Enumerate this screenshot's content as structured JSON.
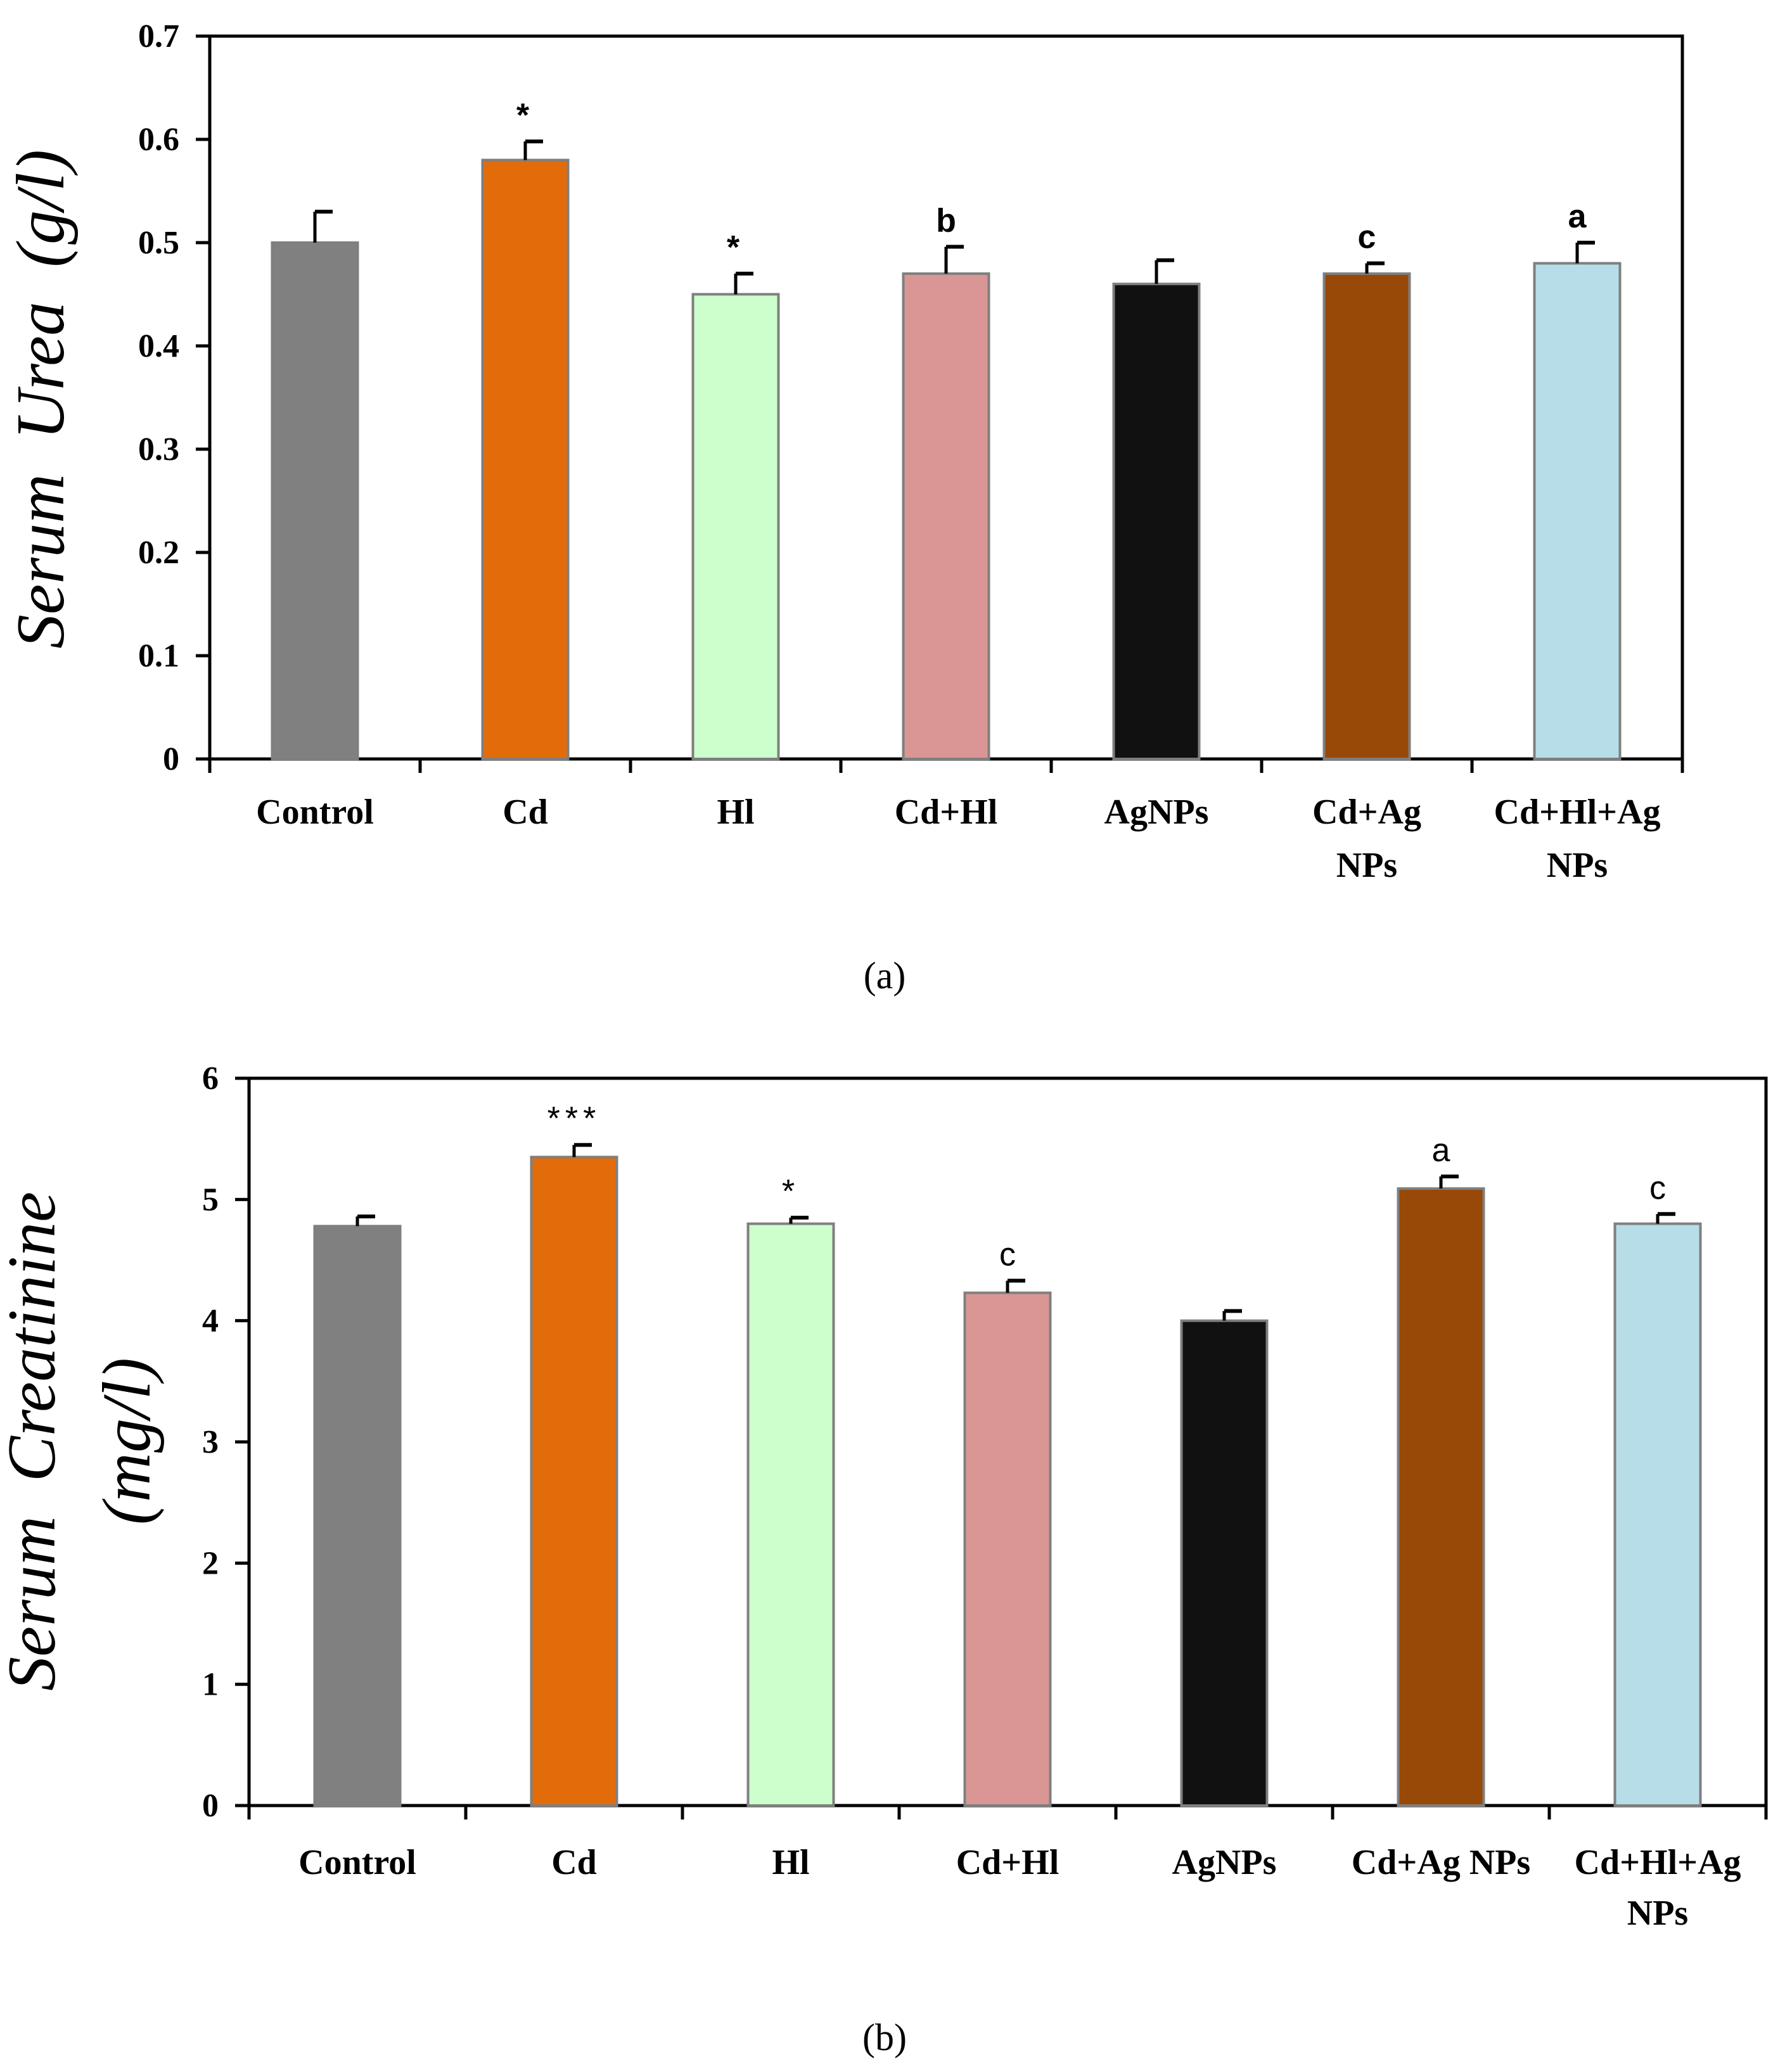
{
  "chart_data": [
    {
      "panel": "(a)",
      "type": "bar",
      "title": "",
      "xlabel": "",
      "ylabel": "Serum  Urea  (g/l)",
      "ylim": [
        0,
        0.7
      ],
      "yticks": [
        "0",
        "0.1",
        "0.2",
        "0.3",
        "0.4",
        "0.5",
        "0.6",
        "0.7"
      ],
      "categories": [
        [
          "Control"
        ],
        [
          "Cd"
        ],
        [
          "Hl"
        ],
        [
          "Cd+Hl"
        ],
        [
          "AgNPs"
        ],
        [
          "Cd+Ag",
          "NPs"
        ],
        [
          "Cd+Hl+Ag",
          "NPs"
        ]
      ],
      "values": [
        0.5,
        0.58,
        0.45,
        0.47,
        0.46,
        0.47,
        0.48
      ],
      "errors": [
        0.03,
        0.018,
        0.02,
        0.026,
        0.023,
        0.01,
        0.02
      ],
      "annotations": [
        "",
        "*",
        "*",
        "b",
        "",
        "c",
        "a"
      ],
      "annotation_style": "bold",
      "colors": [
        "#808080",
        "#e36c0a",
        "#ccffcc",
        "#da9694",
        "#111111",
        "#984807",
        "#b7dde8"
      ],
      "grid": false
    },
    {
      "panel": "(b)",
      "type": "bar",
      "title": "",
      "xlabel": "",
      "ylabel": [
        "Serum  Creatinine",
        "(mg/l)"
      ],
      "ylim": [
        0,
        6
      ],
      "yticks": [
        "0",
        "1",
        "2",
        "3",
        "4",
        "5",
        "6"
      ],
      "categories": [
        [
          "Control"
        ],
        [
          "Cd"
        ],
        [
          "Hl"
        ],
        [
          "Cd+Hl"
        ],
        [
          "AgNPs"
        ],
        [
          "Cd+Ag NPs"
        ],
        [
          "Cd+Hl+Ag",
          "NPs"
        ]
      ],
      "values": [
        4.78,
        5.35,
        4.8,
        4.23,
        4.0,
        5.09,
        4.8
      ],
      "errors": [
        0.08,
        0.1,
        0.05,
        0.1,
        0.08,
        0.1,
        0.08
      ],
      "annotations": [
        "",
        "***",
        "*",
        "c",
        "",
        "a",
        "c"
      ],
      "annotation_style": "plain",
      "colors": [
        "#808080",
        "#e36c0a",
        "#ccffcc",
        "#da9694",
        "#111111",
        "#984807",
        "#b7dde8"
      ],
      "grid": false
    }
  ]
}
